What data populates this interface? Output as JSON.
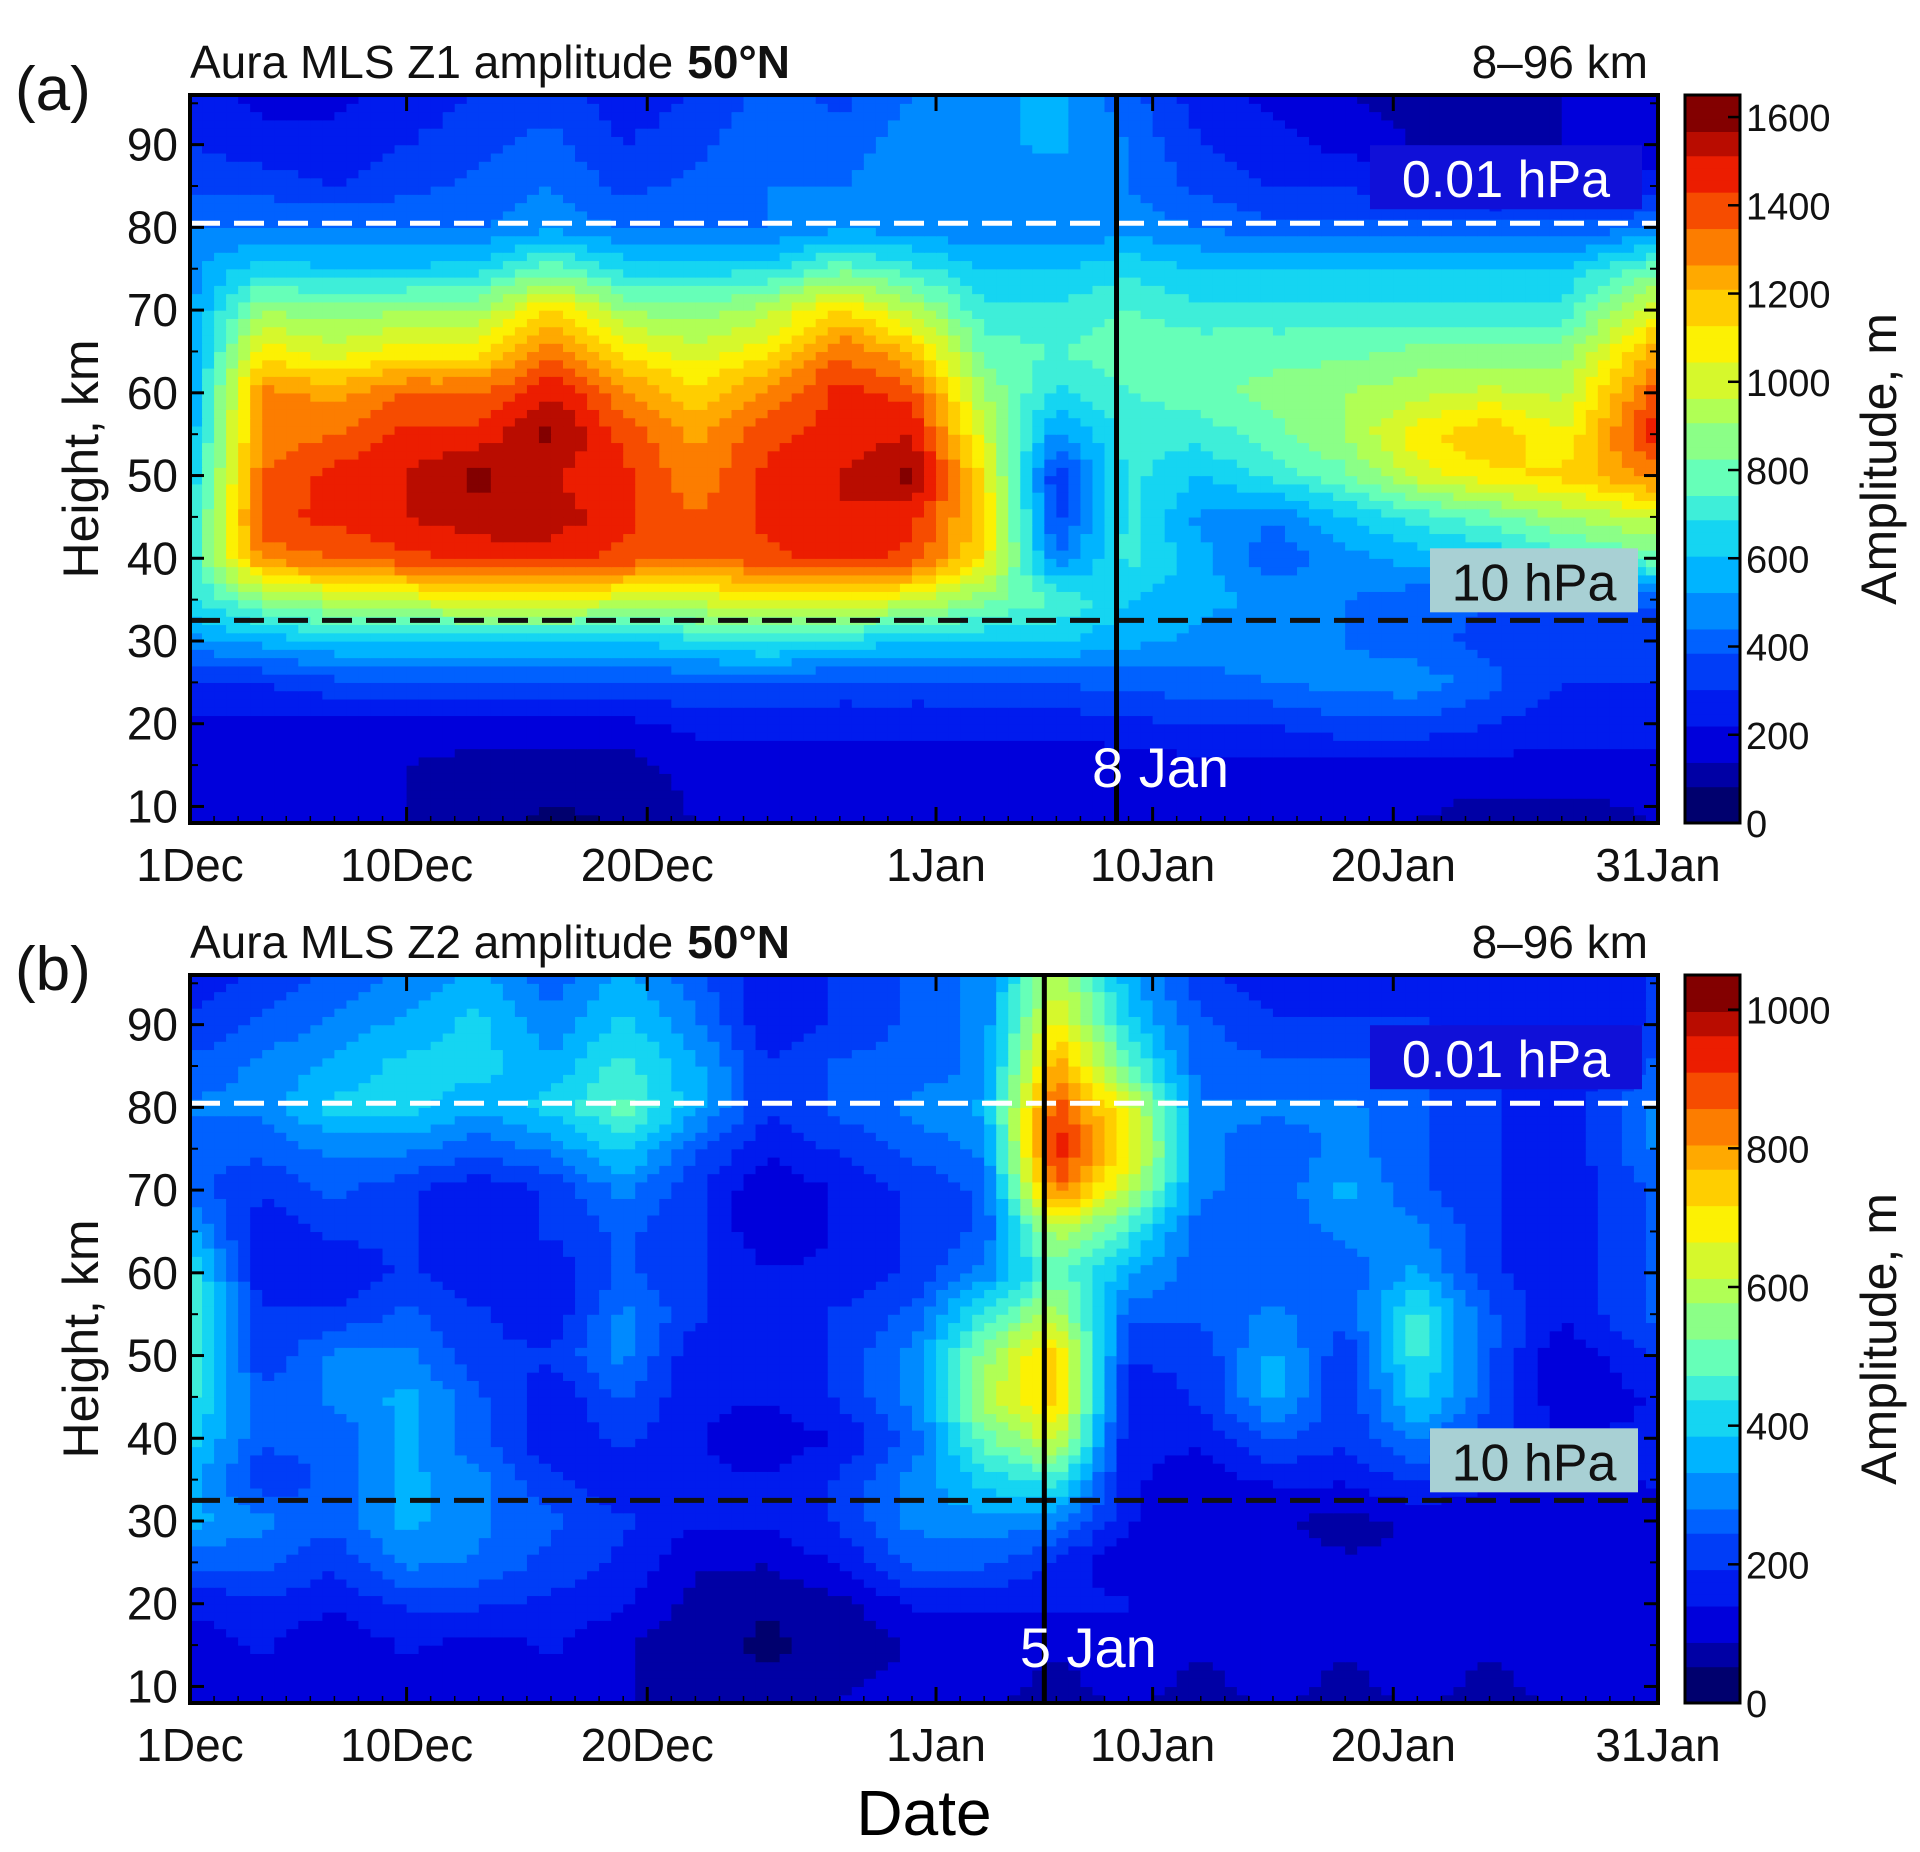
{
  "chart_data": [
    {
      "type": "heatmap",
      "panel_label": "(a)",
      "title_left": "Aura MLS Z1 amplitude",
      "title_lat": "50°N",
      "title_right": "8–96 km",
      "xlabel": "",
      "ylabel": "Height, km",
      "x_tick_labels": [
        "1Dec",
        "10Dec",
        "20Dec",
        "1Jan",
        "10Jan",
        "20Jan",
        "31Jan"
      ],
      "x_tick_days": [
        0,
        9,
        19,
        31,
        40,
        50,
        61
      ],
      "xlim": [
        0,
        61
      ],
      "y_ticks": [
        10,
        20,
        30,
        40,
        50,
        60,
        70,
        80,
        90
      ],
      "ylim": [
        8,
        96
      ],
      "colorbar": {
        "label": "Amplitude, m",
        "ticks": [
          0,
          200,
          400,
          600,
          800,
          1000,
          1200,
          1400,
          1600
        ],
        "range": [
          0,
          1650
        ]
      },
      "vline": {
        "day": 38.5,
        "label": "8 Jan"
      },
      "hlines": [
        {
          "height_km": 80.5,
          "label": "0.01 hPa",
          "line_color": "#ffffff",
          "box_color": "#1010d8",
          "text_color": "#ffffff"
        },
        {
          "height_km": 32.5,
          "label": "10 hPa",
          "line_color": "#111111",
          "box_color": "#a8d0d4",
          "text_color": "#111111"
        }
      ],
      "heights": [
        8,
        15,
        20,
        25,
        30,
        35,
        40,
        45,
        50,
        55,
        60,
        65,
        70,
        75,
        80,
        85,
        90,
        96
      ],
      "days": [
        0,
        3,
        6,
        9,
        12,
        15,
        18,
        21,
        24,
        27,
        30,
        33,
        36,
        39,
        42,
        45,
        48,
        51,
        54,
        57,
        61
      ],
      "values": [
        [
          150,
          150,
          150,
          150,
          100,
          60,
          80,
          150,
          150,
          150,
          150,
          150,
          150,
          150,
          150,
          150,
          150,
          150,
          100,
          100,
          150
        ],
        [
          180,
          180,
          180,
          150,
          120,
          100,
          120,
          180,
          180,
          180,
          180,
          180,
          180,
          180,
          200,
          200,
          200,
          200,
          200,
          200,
          200
        ],
        [
          200,
          200,
          200,
          200,
          200,
          200,
          200,
          250,
          250,
          250,
          250,
          250,
          250,
          280,
          300,
          300,
          350,
          350,
          300,
          250,
          250
        ],
        [
          300,
          300,
          350,
          350,
          350,
          350,
          350,
          380,
          380,
          350,
          350,
          350,
          380,
          400,
          420,
          450,
          480,
          500,
          400,
          300,
          300
        ],
        [
          500,
          550,
          600,
          600,
          620,
          620,
          600,
          650,
          700,
          650,
          600,
          600,
          600,
          550,
          500,
          480,
          450,
          400,
          350,
          300,
          300
        ],
        [
          650,
          850,
          950,
          1000,
          1050,
          1050,
          1000,
          1000,
          1050,
          1050,
          1000,
          850,
          750,
          600,
          550,
          500,
          450,
          400,
          380,
          380,
          400
        ],
        [
          700,
          1300,
          1350,
          1400,
          1450,
          1450,
          1400,
          1350,
          1400,
          1450,
          1400,
          1100,
          450,
          700,
          550,
          400,
          500,
          550,
          600,
          700,
          800
        ],
        [
          650,
          1400,
          1450,
          1500,
          1550,
          1550,
          1450,
          1350,
          1450,
          1500,
          1450,
          1150,
          350,
          700,
          500,
          450,
          600,
          700,
          800,
          900,
          1000
        ],
        [
          600,
          1350,
          1450,
          1500,
          1600,
          1500,
          1450,
          1300,
          1450,
          1500,
          1600,
          1100,
          300,
          700,
          600,
          700,
          800,
          1000,
          1100,
          1150,
          1300
        ],
        [
          550,
          1300,
          1350,
          1450,
          1450,
          1600,
          1400,
          1250,
          1400,
          1450,
          1500,
          1000,
          500,
          700,
          700,
          800,
          900,
          1100,
          1200,
          1050,
          1500
        ],
        [
          500,
          1300,
          1250,
          1350,
          1350,
          1500,
          1300,
          1150,
          1300,
          1450,
          1400,
          900,
          650,
          750,
          800,
          850,
          900,
          950,
          1000,
          950,
          1400
        ],
        [
          500,
          1100,
          1000,
          1100,
          1100,
          1350,
          1100,
          1000,
          1100,
          1350,
          1200,
          800,
          750,
          800,
          800,
          800,
          800,
          850,
          850,
          850,
          1250
        ],
        [
          500,
          900,
          850,
          900,
          900,
          1150,
          900,
          850,
          950,
          1150,
          950,
          700,
          700,
          750,
          700,
          700,
          700,
          700,
          700,
          700,
          1050
        ],
        [
          500,
          650,
          600,
          600,
          650,
          800,
          650,
          650,
          650,
          800,
          700,
          600,
          600,
          650,
          600,
          600,
          600,
          600,
          600,
          600,
          800
        ],
        [
          450,
          450,
          450,
          450,
          450,
          500,
          450,
          450,
          450,
          500,
          500,
          450,
          450,
          500,
          450,
          400,
          400,
          400,
          400,
          400,
          450
        ],
        [
          350,
          350,
          300,
          350,
          400,
          450,
          350,
          400,
          450,
          450,
          500,
          450,
          450,
          450,
          350,
          300,
          300,
          250,
          200,
          200,
          250
        ],
        [
          300,
          250,
          250,
          300,
          350,
          400,
          300,
          350,
          450,
          400,
          500,
          500,
          550,
          450,
          300,
          250,
          200,
          150,
          100,
          150,
          200
        ],
        [
          250,
          200,
          200,
          250,
          300,
          350,
          250,
          300,
          400,
          350,
          450,
          500,
          550,
          400,
          250,
          200,
          150,
          100,
          100,
          150,
          150
        ]
      ]
    },
    {
      "type": "heatmap",
      "panel_label": "(b)",
      "title_left": "Aura MLS Z2 amplitude",
      "title_lat": "50°N",
      "title_right": "8–96 km",
      "xlabel": "Date",
      "ylabel": "Height, km",
      "x_tick_labels": [
        "1Dec",
        "10Dec",
        "20Dec",
        "1Jan",
        "10Jan",
        "20Jan",
        "31Jan"
      ],
      "x_tick_days": [
        0,
        9,
        19,
        31,
        40,
        50,
        61
      ],
      "xlim": [
        0,
        61
      ],
      "y_ticks": [
        10,
        20,
        30,
        40,
        50,
        60,
        70,
        80,
        90
      ],
      "ylim": [
        8,
        96
      ],
      "colorbar": {
        "label": "Amplitude, m",
        "ticks": [
          0,
          200,
          400,
          600,
          800,
          1000
        ],
        "range": [
          0,
          1050
        ]
      },
      "vline": {
        "day": 35.5,
        "label": "5 Jan"
      },
      "hlines": [
        {
          "height_km": 80.5,
          "label": "0.01 hPa",
          "line_color": "#ffffff",
          "box_color": "#1010d8",
          "text_color": "#ffffff"
        },
        {
          "height_km": 32.5,
          "label": "10 hPa",
          "line_color": "#111111",
          "box_color": "#a8d0d4",
          "text_color": "#111111"
        }
      ],
      "heights": [
        8,
        15,
        20,
        25,
        30,
        35,
        40,
        45,
        50,
        55,
        60,
        65,
        70,
        75,
        80,
        85,
        90,
        96
      ],
      "days": [
        0,
        3,
        6,
        9,
        12,
        15,
        18,
        21,
        24,
        27,
        30,
        33,
        36,
        39,
        42,
        45,
        48,
        51,
        54,
        57,
        61
      ],
      "values": [
        [
          100,
          120,
          100,
          120,
          100,
          120,
          100,
          80,
          60,
          100,
          120,
          100,
          80,
          100,
          80,
          100,
          80,
          100,
          80,
          100,
          100
        ],
        [
          120,
          150,
          100,
          150,
          120,
          150,
          100,
          60,
          40,
          60,
          100,
          120,
          100,
          120,
          100,
          120,
          100,
          120,
          100,
          120,
          120
        ],
        [
          150,
          180,
          150,
          200,
          200,
          180,
          150,
          80,
          50,
          80,
          150,
          150,
          150,
          150,
          100,
          100,
          100,
          120,
          100,
          120,
          120
        ],
        [
          250,
          250,
          200,
          300,
          280,
          220,
          180,
          100,
          100,
          150,
          250,
          250,
          180,
          100,
          100,
          120,
          100,
          100,
          100,
          120,
          120
        ],
        [
          350,
          300,
          250,
          350,
          300,
          250,
          200,
          150,
          150,
          200,
          300,
          320,
          300,
          150,
          100,
          100,
          80,
          100,
          100,
          100,
          100
        ],
        [
          350,
          200,
          250,
          350,
          300,
          200,
          150,
          150,
          150,
          200,
          300,
          400,
          450,
          150,
          120,
          150,
          150,
          200,
          150,
          120,
          150
        ],
        [
          400,
          250,
          250,
          350,
          250,
          150,
          200,
          150,
          100,
          150,
          250,
          500,
          650,
          150,
          150,
          250,
          200,
          300,
          200,
          150,
          150
        ],
        [
          450,
          250,
          300,
          350,
          250,
          150,
          250,
          150,
          150,
          200,
          300,
          600,
          750,
          150,
          200,
          350,
          200,
          400,
          250,
          100,
          150
        ],
        [
          500,
          200,
          300,
          300,
          200,
          200,
          300,
          150,
          150,
          200,
          300,
          550,
          750,
          200,
          200,
          350,
          200,
          450,
          250,
          100,
          200
        ],
        [
          500,
          200,
          200,
          250,
          200,
          150,
          300,
          200,
          150,
          200,
          250,
          450,
          600,
          250,
          250,
          300,
          250,
          450,
          250,
          150,
          250
        ],
        [
          450,
          150,
          150,
          200,
          150,
          150,
          250,
          200,
          150,
          150,
          200,
          300,
          500,
          350,
          250,
          250,
          250,
          350,
          200,
          150,
          250
        ],
        [
          350,
          150,
          200,
          200,
          150,
          200,
          250,
          200,
          100,
          150,
          200,
          250,
          600,
          450,
          250,
          250,
          300,
          300,
          200,
          150,
          250
        ],
        [
          250,
          200,
          250,
          200,
          150,
          200,
          300,
          200,
          100,
          150,
          200,
          250,
          850,
          600,
          300,
          250,
          350,
          250,
          200,
          150,
          250
        ],
        [
          250,
          250,
          300,
          300,
          250,
          300,
          400,
          250,
          150,
          200,
          250,
          300,
          950,
          700,
          300,
          250,
          300,
          250,
          200,
          150,
          300
        ],
        [
          300,
          300,
          400,
          400,
          350,
          400,
          500,
          350,
          200,
          250,
          300,
          350,
          900,
          650,
          300,
          300,
          300,
          250,
          200,
          150,
          300
        ],
        [
          250,
          300,
          350,
          400,
          400,
          350,
          450,
          350,
          200,
          250,
          250,
          300,
          800,
          500,
          250,
          250,
          250,
          250,
          200,
          150,
          250
        ],
        [
          200,
          250,
          300,
          350,
          400,
          300,
          400,
          300,
          150,
          200,
          250,
          300,
          700,
          400,
          250,
          200,
          200,
          200,
          150,
          150,
          200
        ],
        [
          150,
          200,
          250,
          300,
          350,
          250,
          350,
          250,
          150,
          200,
          250,
          300,
          600,
          350,
          200,
          150,
          150,
          150,
          150,
          150,
          200
        ]
      ]
    }
  ]
}
